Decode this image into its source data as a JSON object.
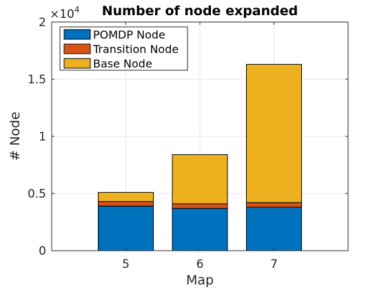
{
  "chart_data": {
    "type": "bar",
    "stacked": true,
    "title": "Number of node expanded",
    "xlabel": "Map",
    "ylabel": "# Node",
    "categories": [
      "5",
      "6",
      "7"
    ],
    "xlim": [
      4,
      8
    ],
    "ylim": [
      0,
      20000
    ],
    "y_ticks": [
      0,
      5000,
      10000,
      15000,
      20000
    ],
    "y_tick_labels": [
      "0",
      "0.5",
      "1",
      "1.5",
      "2"
    ],
    "y_exponent_base": "×10",
    "y_exponent_power": "4",
    "grid": true,
    "legend_placement": "top-left",
    "series": [
      {
        "name": "POMDP Node",
        "color": "#0072BD",
        "values": [
          3900,
          3700,
          3800
        ]
      },
      {
        "name": "Transition Node",
        "color": "#D95319",
        "values": [
          400,
          400,
          400
        ]
      },
      {
        "name": "Base Node",
        "color": "#EDB120",
        "values": [
          800,
          4300,
          12100
        ]
      }
    ]
  }
}
